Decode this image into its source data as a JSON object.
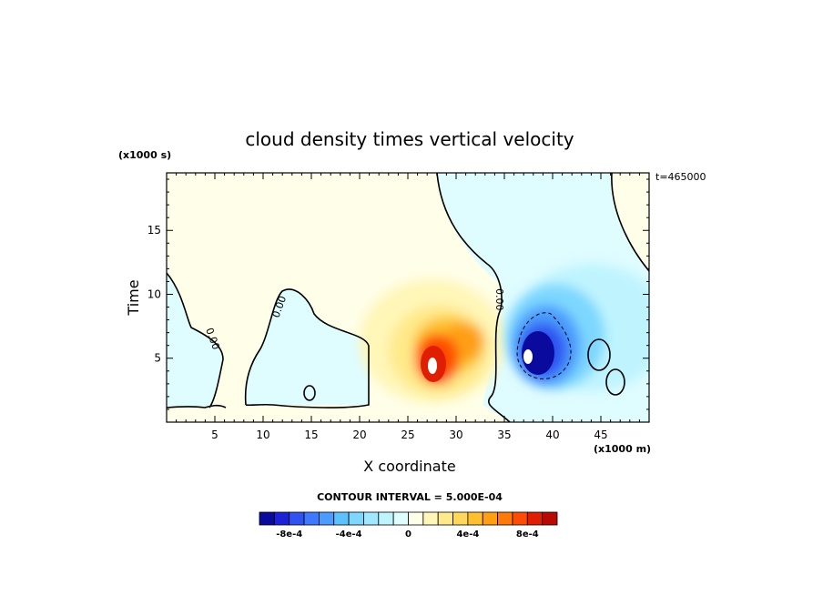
{
  "chart_data": {
    "type": "heatmap",
    "title": "cloud density times vertical velocity",
    "xlabel": "X coordinate",
    "ylabel": "Time",
    "x_unit": "(x1000 m)",
    "y_unit": "(x1000 s)",
    "time_stamp": "t=465000",
    "xlim": [
      0,
      50
    ],
    "ylim": [
      0,
      19.5
    ],
    "x_ticks": [
      5,
      10,
      15,
      20,
      25,
      30,
      35,
      40,
      45
    ],
    "y_ticks": [
      5,
      10,
      15
    ],
    "contour_interval_text": "CONTOUR INTERVAL = 5.000E-04",
    "contour_label": "0.00",
    "colorbar": {
      "levels": [
        -0.001,
        -0.0009,
        -0.0008,
        -0.0007,
        -0.0006,
        -0.0005,
        -0.0004,
        -0.0003,
        -0.0002,
        -0.0001,
        0,
        0.0001,
        0.0002,
        0.0003,
        0.0004,
        0.0005,
        0.0006,
        0.0007,
        0.0008,
        0.0009,
        0.001
      ],
      "colors": [
        "#0a0a9c",
        "#1c23d6",
        "#2f52f0",
        "#3e79ff",
        "#4c9cff",
        "#5ec1ff",
        "#7dd7ff",
        "#9fe8ff",
        "#bff4ff",
        "#dffcff",
        "#fffee8",
        "#fff6b8",
        "#ffe98a",
        "#ffd75c",
        "#ffbf2e",
        "#ff9f12",
        "#ff7a08",
        "#ff4c04",
        "#e01f02",
        "#b80a02"
      ],
      "tick_labels": [
        "-8e-4",
        "-4e-4",
        "0",
        "4e-4",
        "8e-4"
      ],
      "tick_values": [
        -0.0008,
        -0.0004,
        0,
        0.0004,
        0.0008
      ]
    },
    "features": [
      {
        "kind": "positive_core",
        "x": 27.3,
        "y": 4.8,
        "peak": 0.0011
      },
      {
        "kind": "negative_core",
        "x": 37.5,
        "y": 5.3,
        "peak": -0.0011
      }
    ]
  }
}
